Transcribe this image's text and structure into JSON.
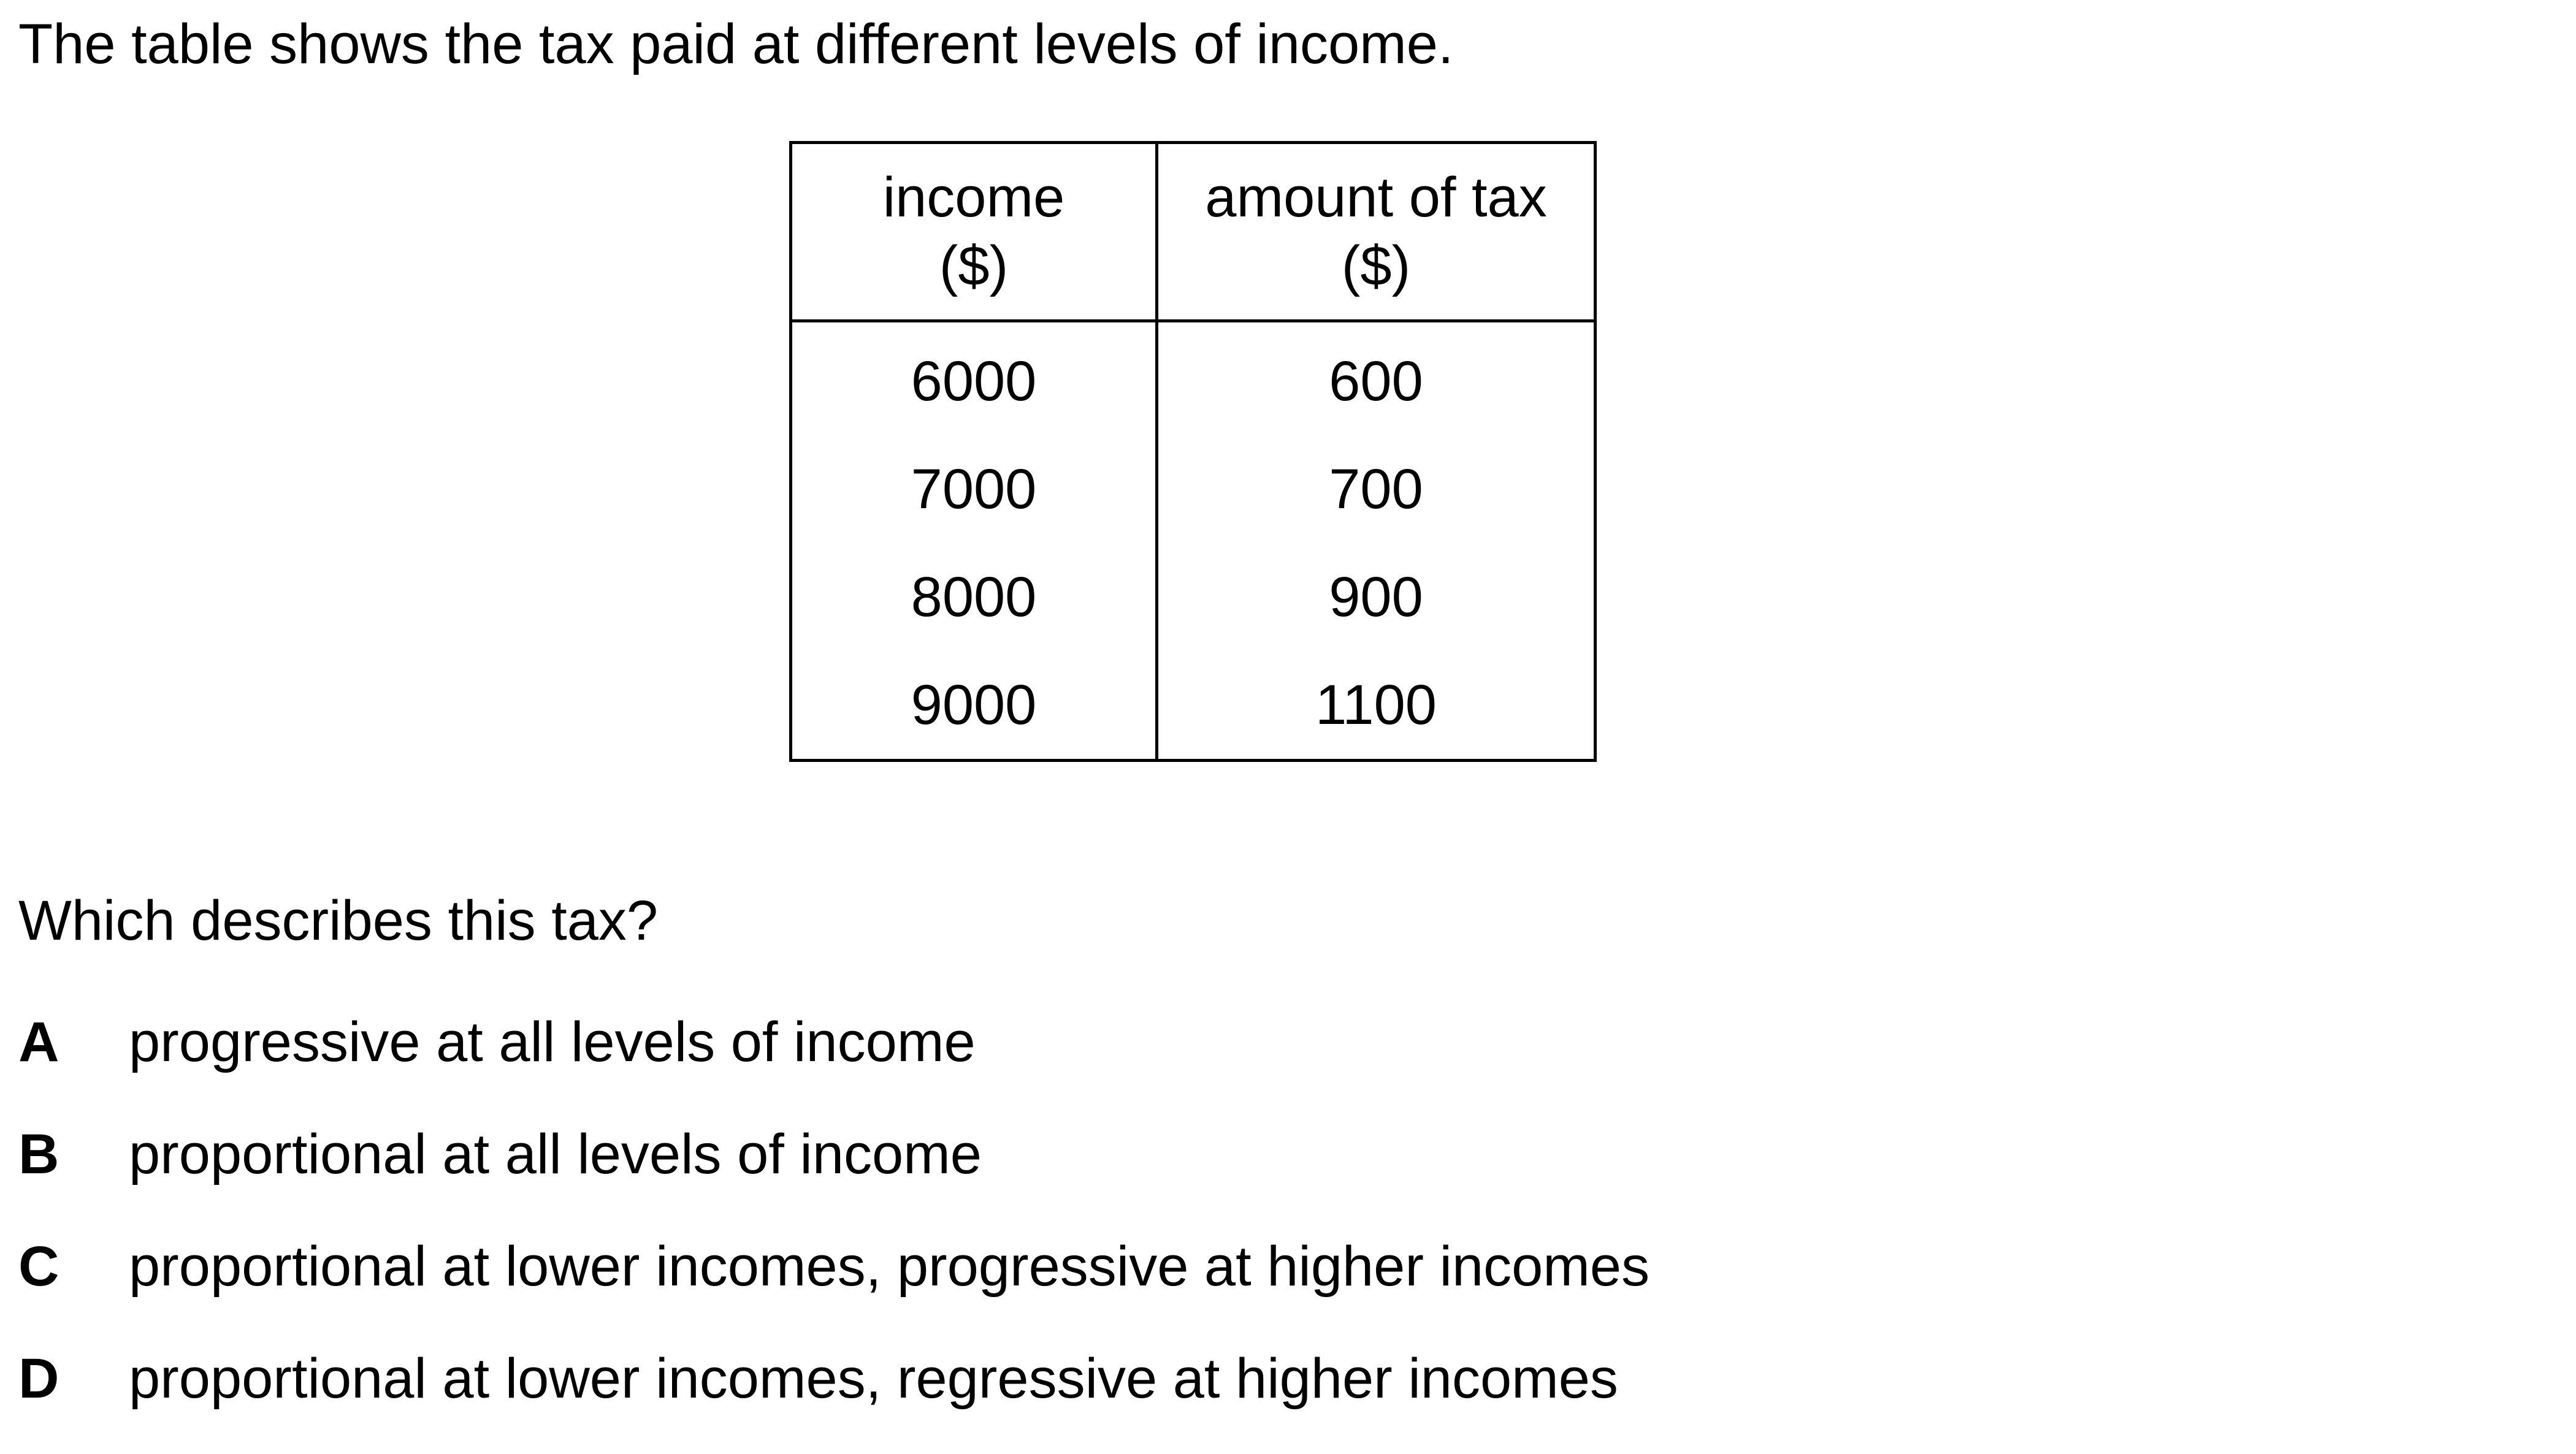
{
  "intro": "The table shows the tax paid at different levels of income.",
  "table": {
    "headers": {
      "income_line1": "income",
      "income_line2": "($)",
      "tax_line1": "amount of tax",
      "tax_line2": "($)"
    },
    "rows": [
      {
        "income": "6000",
        "tax": "600"
      },
      {
        "income": "7000",
        "tax": "700"
      },
      {
        "income": "8000",
        "tax": "900"
      },
      {
        "income": "9000",
        "tax": "1100"
      }
    ]
  },
  "question": "Which describes this tax?",
  "options": [
    {
      "letter": "A",
      "text": "progressive at all levels of income"
    },
    {
      "letter": "B",
      "text": "proportional at all levels of income"
    },
    {
      "letter": "C",
      "text": "proportional at lower incomes, progressive at higher incomes"
    },
    {
      "letter": "D",
      "text": "proportional at lower incomes, regressive at higher incomes"
    }
  ]
}
